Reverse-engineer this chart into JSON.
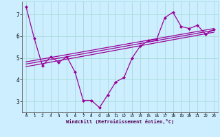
{
  "xlabel": "Windchill (Refroidissement éolien,°C)",
  "bg_color": "#cceeff",
  "grid_color": "#aadddd",
  "line_color": "#990099",
  "xlim": [
    -0.5,
    23.5
  ],
  "ylim": [
    2.5,
    7.6
  ],
  "yticks": [
    3,
    4,
    5,
    6,
    7
  ],
  "xticks": [
    0,
    1,
    2,
    3,
    4,
    5,
    6,
    7,
    8,
    9,
    10,
    11,
    12,
    13,
    14,
    15,
    16,
    17,
    18,
    19,
    20,
    21,
    22,
    23
  ],
  "curve1_x": [
    0,
    1,
    2,
    3,
    4,
    5,
    6,
    7,
    8,
    9,
    10,
    11,
    12,
    13,
    14,
    15,
    16,
    17,
    18,
    19,
    20,
    21,
    22,
    23
  ],
  "curve1_y": [
    7.35,
    5.9,
    4.65,
    5.05,
    4.8,
    5.05,
    4.35,
    3.05,
    3.05,
    2.72,
    3.3,
    3.9,
    4.1,
    5.0,
    5.55,
    5.8,
    5.85,
    6.85,
    7.1,
    6.45,
    6.35,
    6.5,
    6.1,
    6.3
  ],
  "trend1_x": [
    0,
    23
  ],
  "trend1_y": [
    4.72,
    6.27
  ],
  "trend2_x": [
    0,
    23
  ],
  "trend2_y": [
    4.82,
    6.35
  ],
  "trend3_x": [
    0,
    23
  ],
  "trend3_y": [
    4.6,
    6.18
  ]
}
